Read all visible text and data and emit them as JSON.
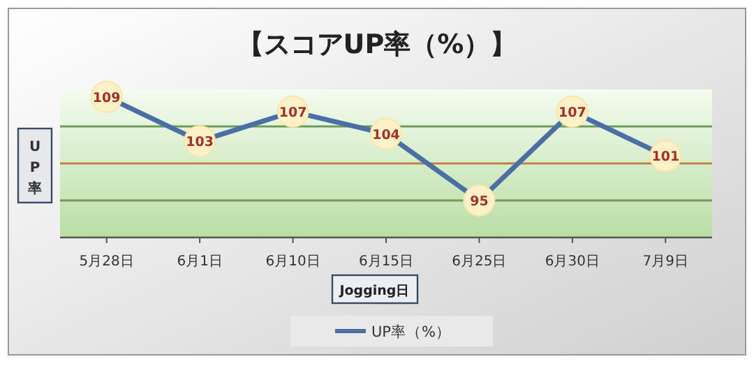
{
  "chart_data": {
    "type": "line",
    "title": "【スコアUP率（%）】",
    "xlabel": "Jogging日",
    "ylabel": "UP率",
    "categories": [
      "5月28日",
      "6月1日",
      "6月10日",
      "6月15日",
      "6月25日",
      "6月30日",
      "7月9日"
    ],
    "series": [
      {
        "name": "UP率（%）",
        "color": "#4a6fa5",
        "values": [
          109,
          103,
          107,
          104,
          95,
          107,
          101
        ]
      }
    ],
    "ylim": [
      90,
      110
    ],
    "ref_lines": [
      {
        "axis": "y",
        "value": 95,
        "color": "#6f9a5c"
      },
      {
        "axis": "y",
        "value": 100,
        "color": "#c08040"
      },
      {
        "axis": "y",
        "value": 105,
        "color": "#6f9a5c"
      }
    ],
    "tick_labels": "x",
    "data_labels": true,
    "marker": "circle",
    "line_style": "solid",
    "legend": "bottom"
  }
}
